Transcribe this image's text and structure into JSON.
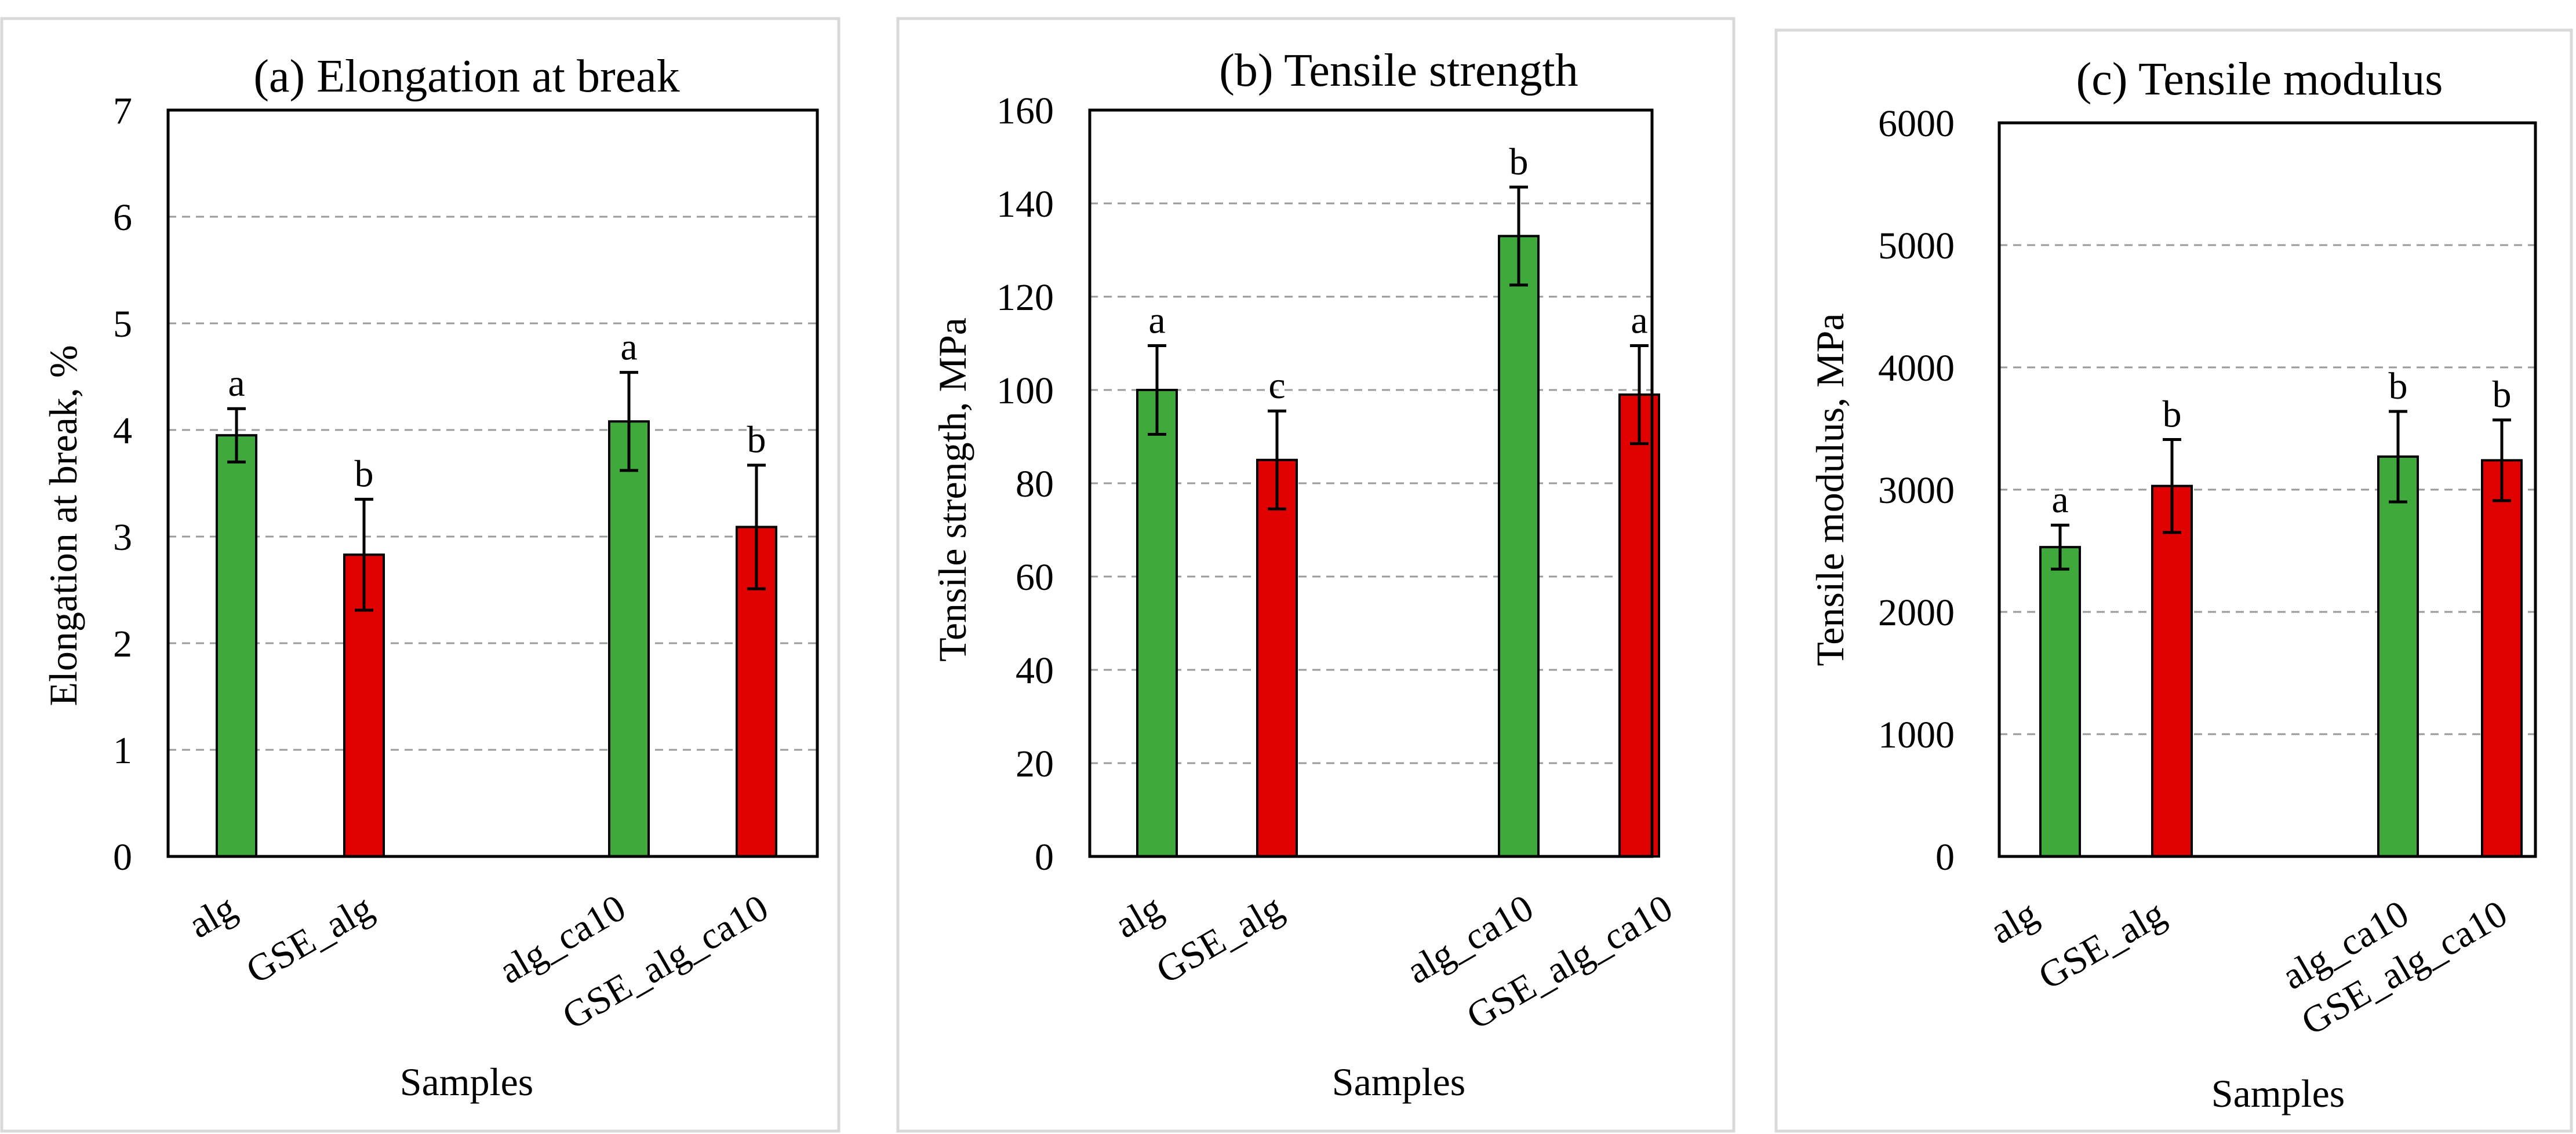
{
  "chart_data": [
    {
      "type": "bar",
      "title": "(a) Elongation at break",
      "xlabel": "Samples",
      "ylabel": "Elongation at break, %",
      "ylim": [
        0,
        7
      ],
      "yticks": [
        "0",
        "1",
        "2",
        "3",
        "4",
        "5",
        "6",
        "7"
      ],
      "grid": "horizontal dashed",
      "categories": [
        "alg",
        "GSE_alg",
        "alg_ca10",
        "GSE_alg_ca10"
      ],
      "values": [
        3.95,
        2.83,
        4.08,
        3.09
      ],
      "errors": [
        0.25,
        0.52,
        0.46,
        0.58
      ],
      "significance": [
        "a",
        "b",
        "a",
        "b"
      ],
      "colors": [
        "#3fa93c",
        "#e00000",
        "#3fa93c",
        "#e00000"
      ]
    },
    {
      "type": "bar",
      "title": "(b) Tensile strength",
      "xlabel": "Samples",
      "ylabel": "Tensile strength, MPa",
      "ylim": [
        0,
        160
      ],
      "yticks": [
        "0",
        "20",
        "40",
        "60",
        "80",
        "100",
        "120",
        "140",
        "160"
      ],
      "grid": "horizontal dashed",
      "categories": [
        "alg",
        "GSE_alg",
        "alg_ca10",
        "GSE_alg_ca10"
      ],
      "values": [
        100,
        85,
        133,
        99
      ],
      "errors": [
        9.5,
        10.5,
        10.5,
        10.5
      ],
      "significance": [
        "a",
        "c",
        "b",
        "a"
      ],
      "colors": [
        "#3fa93c",
        "#e00000",
        "#3fa93c",
        "#e00000"
      ]
    },
    {
      "type": "bar",
      "title": "(c) Tensile modulus",
      "xlabel": "Samples",
      "ylabel": "Tensile modulus, MPa",
      "ylim": [
        0,
        6000
      ],
      "yticks": [
        "0",
        "1000",
        "2000",
        "3000",
        "4000",
        "5000",
        "6000"
      ],
      "grid": "horizontal dashed",
      "categories": [
        "alg",
        "GSE_alg",
        "alg_ca10",
        "GSE_alg_ca10"
      ],
      "values": [
        2530,
        3030,
        3270,
        3240
      ],
      "errors": [
        180,
        380,
        370,
        330
      ],
      "significance": [
        "a",
        "b",
        "b",
        "b"
      ],
      "colors": [
        "#3fa93c",
        "#e00000",
        "#3fa93c",
        "#e00000"
      ]
    }
  ]
}
